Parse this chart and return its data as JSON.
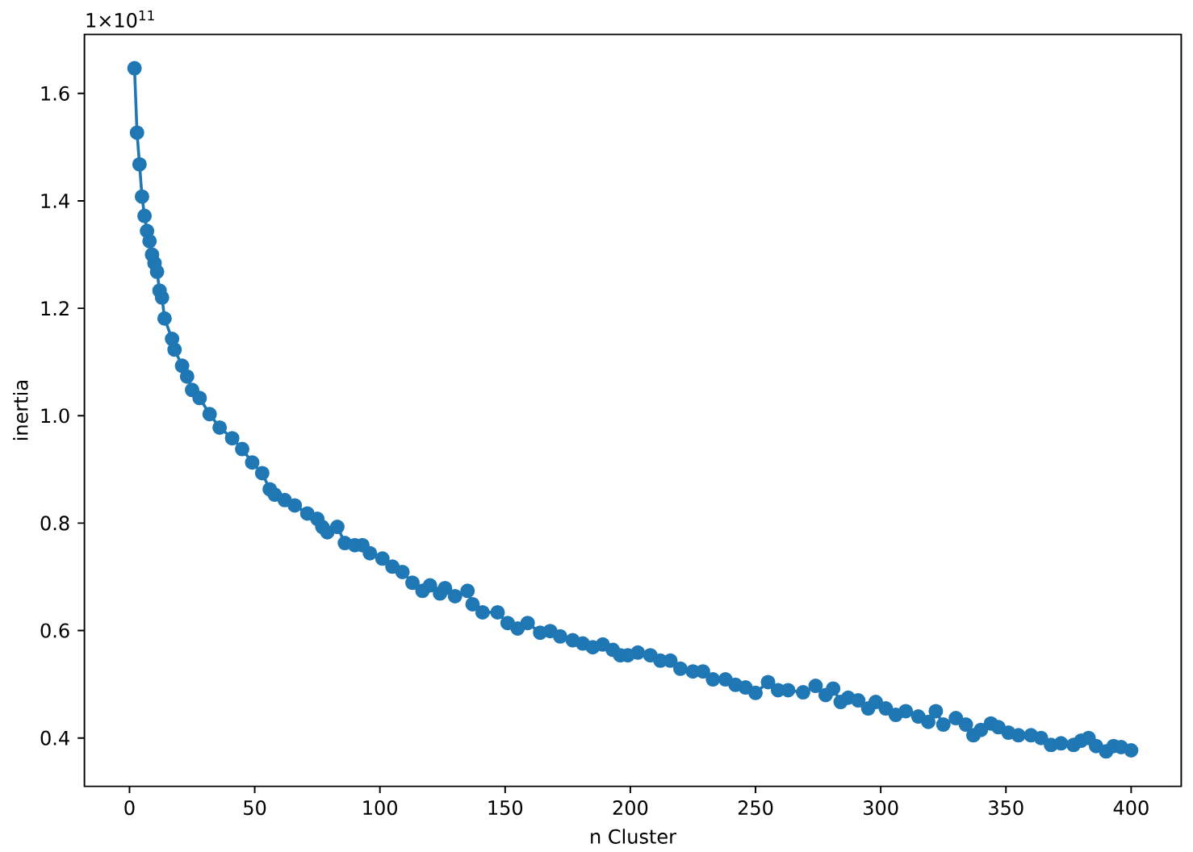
{
  "chart_data": {
    "type": "line",
    "xlabel": "n Cluster",
    "ylabel": "inertia",
    "annotations": [
      "1×10$^{11}$"
    ],
    "x": [
      2,
      3,
      4,
      5,
      6,
      7,
      8,
      9,
      10,
      11,
      12,
      13,
      14,
      17,
      18,
      21,
      23,
      25,
      28,
      32,
      36,
      41,
      45,
      49,
      53,
      56,
      58,
      62,
      66,
      71,
      75,
      77,
      79,
      83,
      86,
      90,
      93,
      96,
      101,
      105,
      109,
      113,
      117,
      120,
      124,
      126,
      130,
      135,
      137,
      141,
      147,
      151,
      155,
      159,
      164,
      168,
      172,
      177,
      181,
      185,
      189,
      193,
      196,
      199,
      203,
      208,
      212,
      216,
      220,
      225,
      229,
      233,
      238,
      242,
      246,
      250,
      255,
      259,
      263,
      269,
      274,
      278,
      281,
      284,
      287,
      291,
      295,
      298,
      302,
      306,
      310,
      315,
      319,
      322,
      325,
      330,
      334,
      337,
      340,
      344,
      347,
      351,
      355,
      360,
      364,
      368,
      372,
      377,
      380,
      383,
      386,
      390,
      393,
      396,
      400
    ],
    "values": [
      1.647,
      1.527,
      1.468,
      1.408,
      1.372,
      1.344,
      1.325,
      1.3,
      1.284,
      1.268,
      1.233,
      1.22,
      1.181,
      1.143,
      1.123,
      1.093,
      1.073,
      1.048,
      1.033,
      1.003,
      0.978,
      0.958,
      0.938,
      0.913,
      0.893,
      0.863,
      0.853,
      0.843,
      0.833,
      0.818,
      0.808,
      0.793,
      0.783,
      0.793,
      0.763,
      0.759,
      0.759,
      0.744,
      0.734,
      0.719,
      0.709,
      0.689,
      0.674,
      0.684,
      0.669,
      0.679,
      0.664,
      0.674,
      0.649,
      0.634,
      0.634,
      0.614,
      0.604,
      0.614,
      0.596,
      0.599,
      0.589,
      0.582,
      0.576,
      0.569,
      0.574,
      0.564,
      0.554,
      0.554,
      0.559,
      0.554,
      0.544,
      0.544,
      0.529,
      0.524,
      0.524,
      0.509,
      0.509,
      0.499,
      0.494,
      0.484,
      0.504,
      0.489,
      0.489,
      0.485,
      0.497,
      0.48,
      0.492,
      0.467,
      0.475,
      0.47,
      0.455,
      0.467,
      0.455,
      0.443,
      0.45,
      0.44,
      0.43,
      0.45,
      0.425,
      0.437,
      0.425,
      0.405,
      0.415,
      0.427,
      0.42,
      0.41,
      0.405,
      0.405,
      0.4,
      0.387,
      0.39,
      0.387,
      0.395,
      0.4,
      0.385,
      0.375,
      0.385,
      0.383,
      0.377
    ],
    "color": "#1f77b4",
    "marker": "circle",
    "line_style": "solid",
    "xlim": [
      -18,
      420
    ],
    "ylim": [
      0.31,
      1.71
    ],
    "xticks": [
      0,
      50,
      100,
      150,
      200,
      250,
      300,
      350,
      400
    ],
    "yticks": [
      0.4,
      0.6,
      0.8,
      {
        "value": 1,
        "label": "1.0"
      },
      1.2,
      1.4,
      1.6
    ]
  }
}
